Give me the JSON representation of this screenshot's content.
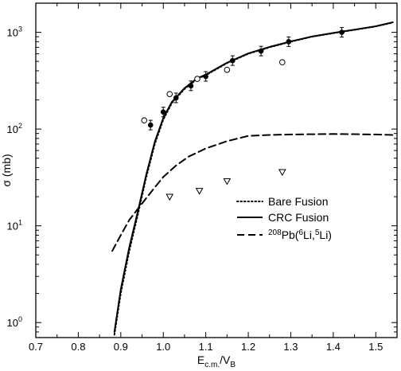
{
  "chart_data": {
    "type": "scatter",
    "title": "",
    "xlabel": {
      "main": "E",
      "sub1": "c.m.",
      "mid": "/V",
      "sub2": "B"
    },
    "ylabel": "σ (mb)",
    "xlim": [
      0.7,
      1.55
    ],
    "ylim": [
      0.7,
      2000
    ],
    "yscale": "log",
    "x_ticks": [
      "0.7",
      "0.8",
      "0.9",
      "1.0",
      "1.1",
      "1.2",
      "1.3",
      "1.4",
      "1.5"
    ],
    "x_tick_values": [
      0.7,
      0.8,
      0.9,
      1.0,
      1.1,
      1.2,
      1.3,
      1.4,
      1.5
    ],
    "y_ticks": [
      {
        "value": 1,
        "base": "10",
        "exp": "0"
      },
      {
        "value": 10,
        "base": "10",
        "exp": "1"
      },
      {
        "value": 100,
        "base": "10",
        "exp": "2"
      },
      {
        "value": 1000,
        "base": "10",
        "exp": "3"
      }
    ],
    "legend_position": "right",
    "series": [
      {
        "name": "Bare Fusion",
        "kind": "line",
        "dash": "dotted",
        "x": [
          0.885,
          0.9,
          0.92,
          0.94,
          0.96,
          0.98,
          1.0,
          1.02,
          1.05,
          1.08,
          1.1,
          1.15,
          1.2,
          1.25,
          1.3,
          1.35,
          1.4,
          1.45,
          1.5,
          1.54
        ],
        "y": [
          0.75,
          2.0,
          5.5,
          13,
          32,
          70,
          125,
          185,
          260,
          330,
          360,
          480,
          600,
          700,
          800,
          900,
          980,
          1060,
          1150,
          1260
        ]
      },
      {
        "name": "CRC Fusion",
        "kind": "line",
        "dash": "solid",
        "x": [
          0.885,
          0.9,
          0.92,
          0.94,
          0.96,
          0.98,
          1.0,
          1.02,
          1.05,
          1.08,
          1.1,
          1.15,
          1.2,
          1.25,
          1.3,
          1.35,
          1.4,
          1.45,
          1.5,
          1.54
        ],
        "y": [
          0.8,
          2.2,
          6.0,
          14,
          34,
          74,
          130,
          190,
          265,
          335,
          365,
          485,
          605,
          705,
          805,
          905,
          985,
          1065,
          1155,
          1270
        ]
      },
      {
        "name": "²⁰⁸Pb(⁶Li,⁵Li)",
        "kind": "line",
        "dash": "dashed",
        "x": [
          0.88,
          0.9,
          0.92,
          0.95,
          0.98,
          1.0,
          1.03,
          1.06,
          1.1,
          1.15,
          1.2,
          1.25,
          1.3,
          1.4,
          1.5,
          1.54
        ],
        "y": [
          5.5,
          8.0,
          11.5,
          17,
          25,
          32,
          42,
          52,
          63,
          75,
          85,
          87,
          88,
          89,
          88,
          87
        ]
      },
      {
        "kind": "scatter",
        "marker": "filled-circle",
        "x": [
          0.97,
          1.0,
          1.03,
          1.065,
          1.1,
          1.163,
          1.23,
          1.295,
          1.42
        ],
        "y": [
          110,
          150,
          210,
          280,
          350,
          510,
          640,
          800,
          1000
        ]
      },
      {
        "kind": "scatter",
        "marker": "open-circle",
        "x": [
          0.955,
          1.015,
          1.08,
          1.15,
          1.28
        ],
        "y": [
          123,
          230,
          330,
          410,
          490
        ]
      },
      {
        "kind": "scatter",
        "marker": "open-triangle",
        "x": [
          1.015,
          1.085,
          1.15,
          1.28
        ],
        "y": [
          20,
          23,
          29,
          36
        ]
      }
    ],
    "legend": [
      {
        "label": "Bare Fusion",
        "dash": "dotted"
      },
      {
        "label": "CRC Fusion",
        "dash": "solid"
      },
      {
        "label": "208Pb(6Li,5Li)",
        "dash": "dashed",
        "parts": {
          "iso1": "208",
          "el1": "Pb(",
          "iso2": "6",
          "el2": "Li,",
          "iso3": "5",
          "el3": "Li)"
        }
      }
    ]
  }
}
